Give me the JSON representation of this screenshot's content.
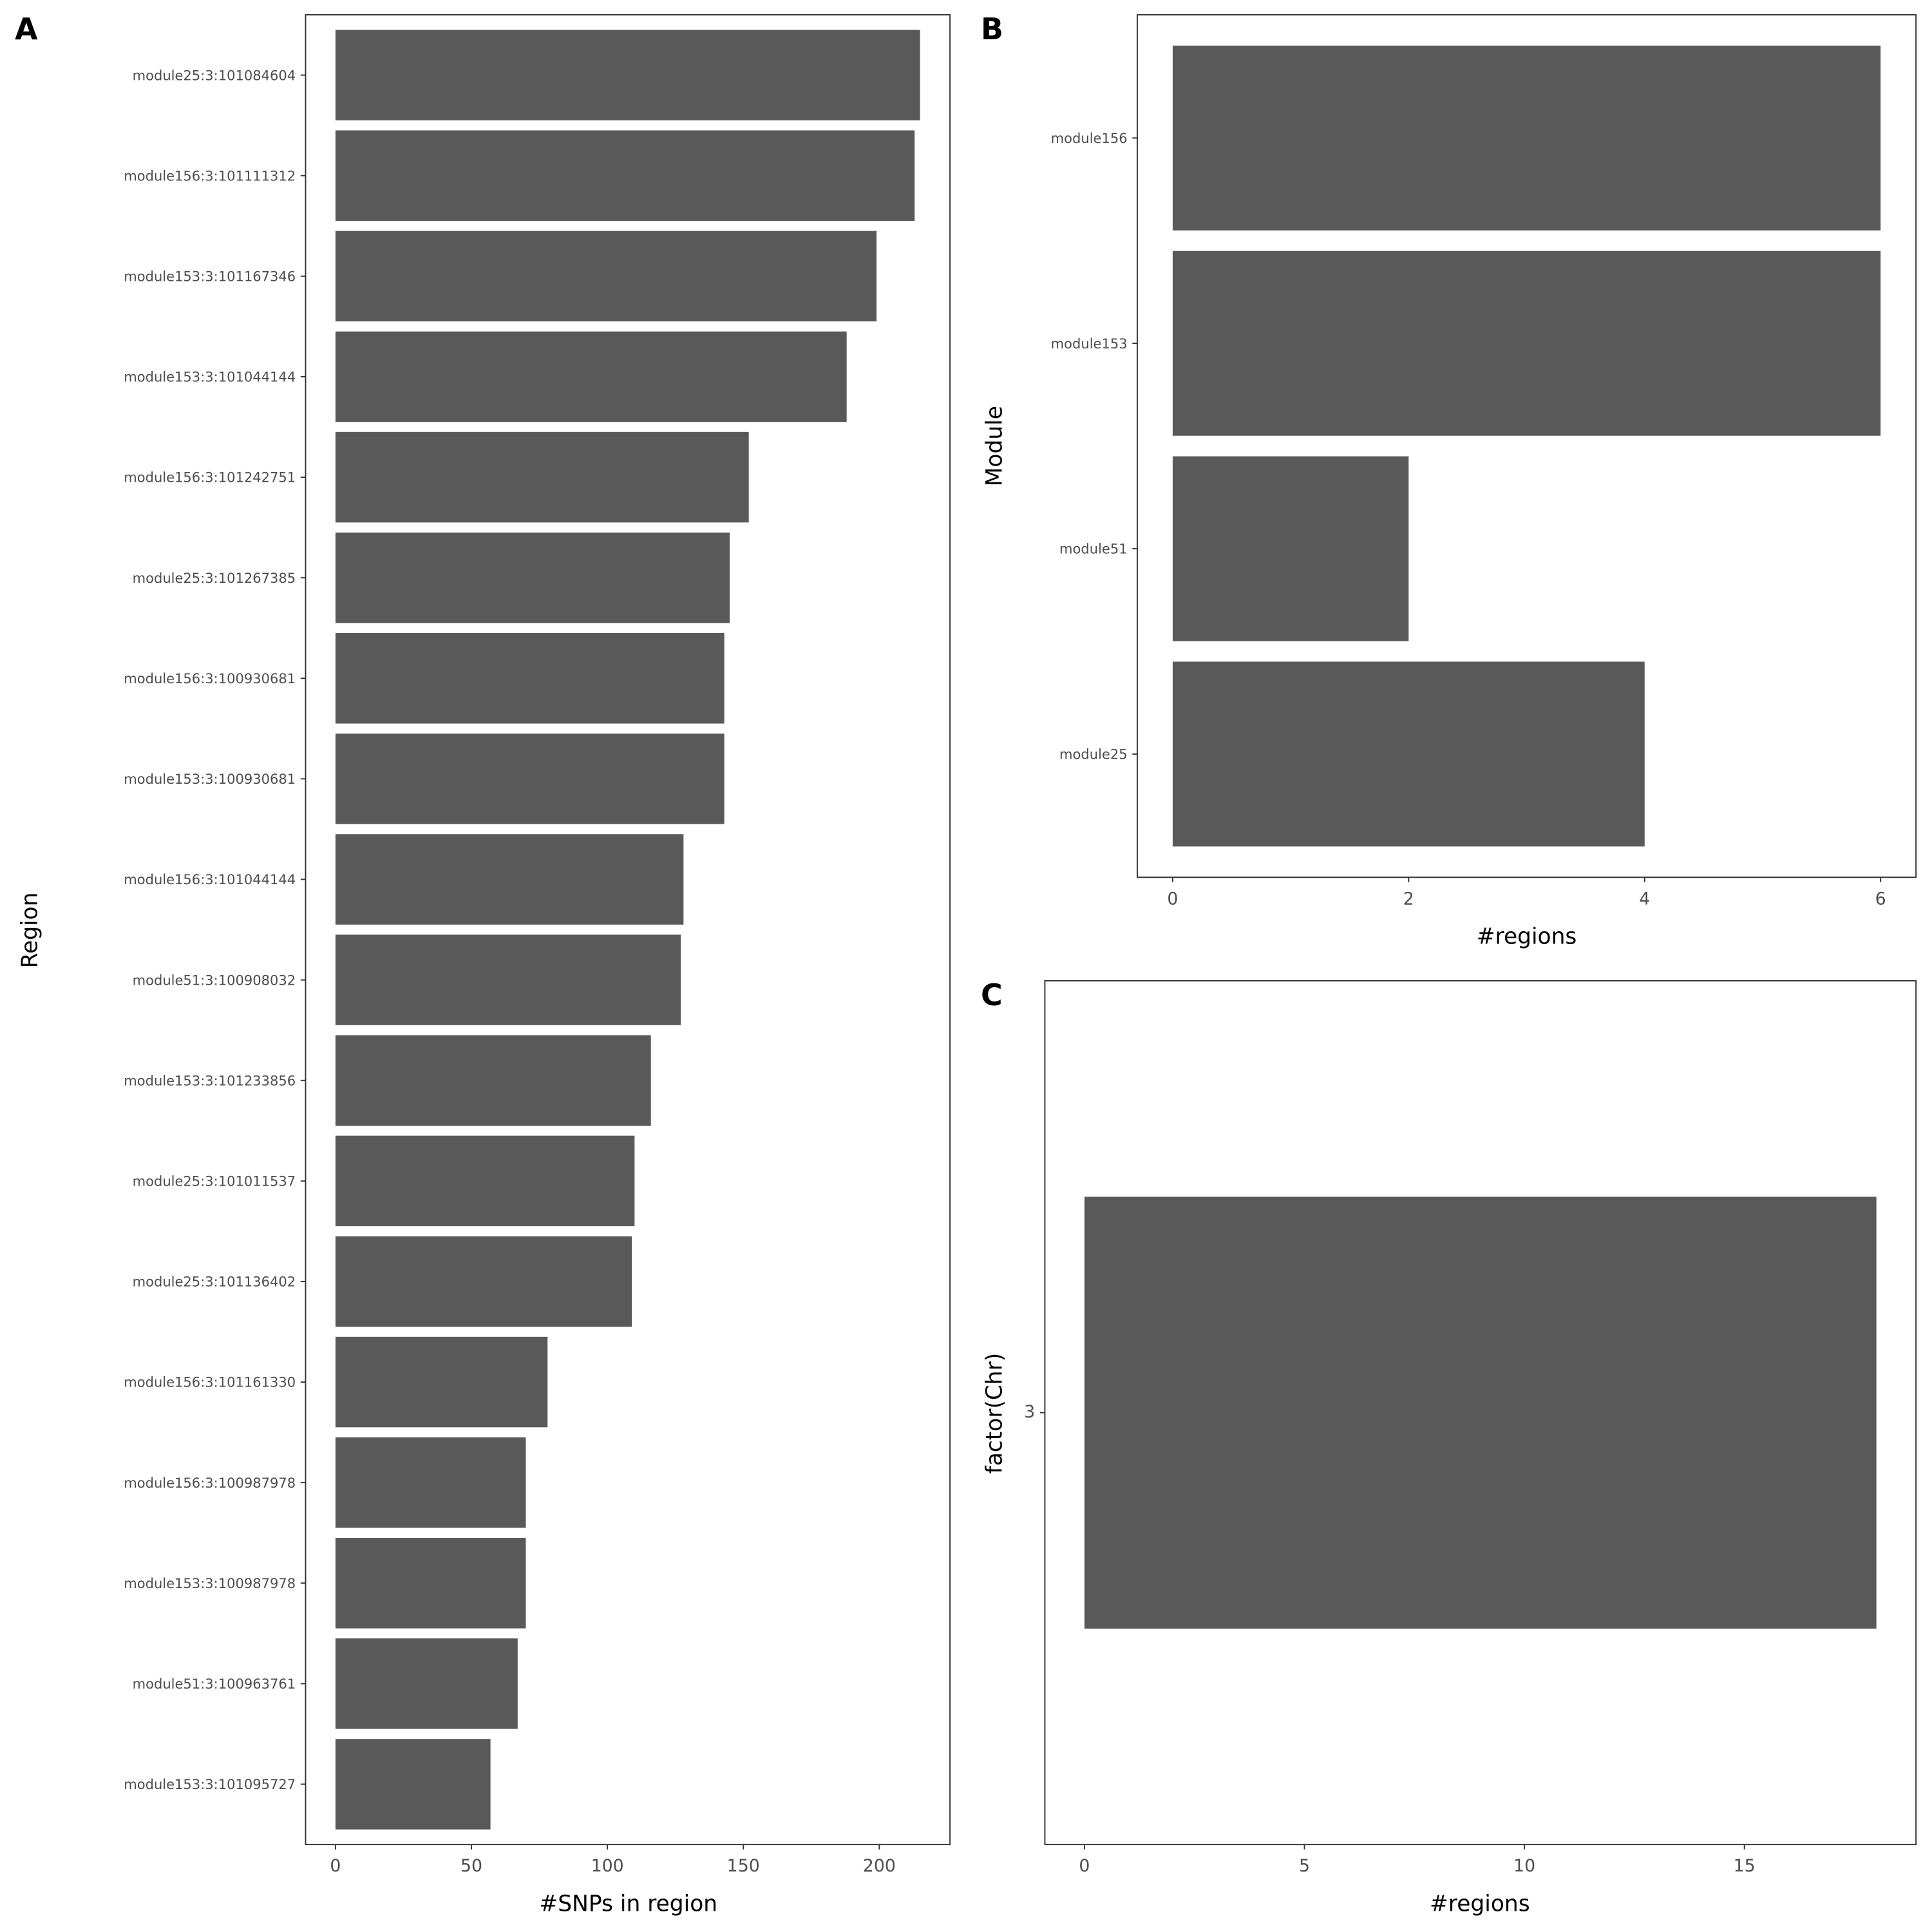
{
  "chart_data": [
    {
      "type": "bar",
      "orientation": "horizontal",
      "panel_label": "A",
      "xlabel": "#SNPs in region",
      "ylabel": "Region",
      "xlim": [
        -11,
        226
      ],
      "xticks": [
        0,
        50,
        100,
        150,
        200
      ],
      "grid": false,
      "bar_color": "#595959",
      "categories": [
        "module25:3:101084604",
        "module156:3:101111312",
        "module153:3:101167346",
        "module153:3:101044144",
        "module156:3:101242751",
        "module25:3:101267385",
        "module156:3:100930681",
        "module153:3:100930681",
        "module156:3:101044144",
        "module51:3:100908032",
        "module153:3:101233856",
        "module25:3:101011537",
        "module25:3:101136402",
        "module156:3:101161330",
        "module156:3:100987978",
        "module153:3:100987978",
        "module51:3:100963761",
        "module153:3:101095727"
      ],
      "values": [
        215,
        213,
        199,
        188,
        152,
        145,
        143,
        143,
        128,
        127,
        116,
        110,
        109,
        78,
        70,
        70,
        67,
        57
      ]
    },
    {
      "type": "bar",
      "orientation": "horizontal",
      "panel_label": "B",
      "xlabel": "#regions",
      "ylabel": "Module",
      "xlim": [
        -0.3,
        6.3
      ],
      "xticks": [
        0,
        2,
        4,
        6
      ],
      "grid": false,
      "bar_color": "#595959",
      "categories": [
        "module156",
        "module153",
        "module51",
        "module25"
      ],
      "values": [
        6,
        6,
        2,
        4
      ]
    },
    {
      "type": "bar",
      "orientation": "horizontal",
      "panel_label": "C",
      "xlabel": "#regions",
      "ylabel": "factor(Chr)",
      "xlim": [
        -0.9,
        18.9
      ],
      "xticks": [
        0,
        5,
        10,
        15
      ],
      "grid": false,
      "bar_color": "#595959",
      "categories": [
        "3"
      ],
      "values": [
        18
      ]
    }
  ]
}
